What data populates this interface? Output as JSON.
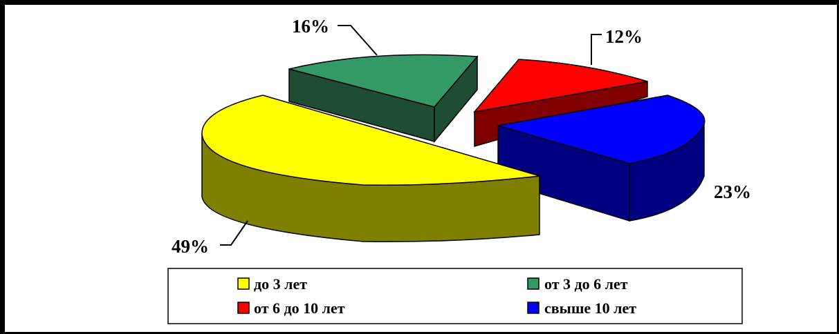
{
  "chart_data": {
    "type": "pie",
    "style": "3d-exploded",
    "slices": [
      {
        "label": "до 3 лет",
        "value": 49,
        "display": "49%",
        "color": "#FFFF00",
        "side": "#808000"
      },
      {
        "label": "от 3 до 6 лет",
        "value": 16,
        "display": "16%",
        "color": "#339966",
        "side": "#1E4D33"
      },
      {
        "label": "от 6 до 10 лет",
        "value": 12,
        "display": "12%",
        "color": "#FF0000",
        "side": "#800000"
      },
      {
        "label": "свыше 10 лет",
        "value": 23,
        "display": "23%",
        "color": "#0000FF",
        "side": "#000080"
      }
    ],
    "legend_position": "bottom"
  }
}
